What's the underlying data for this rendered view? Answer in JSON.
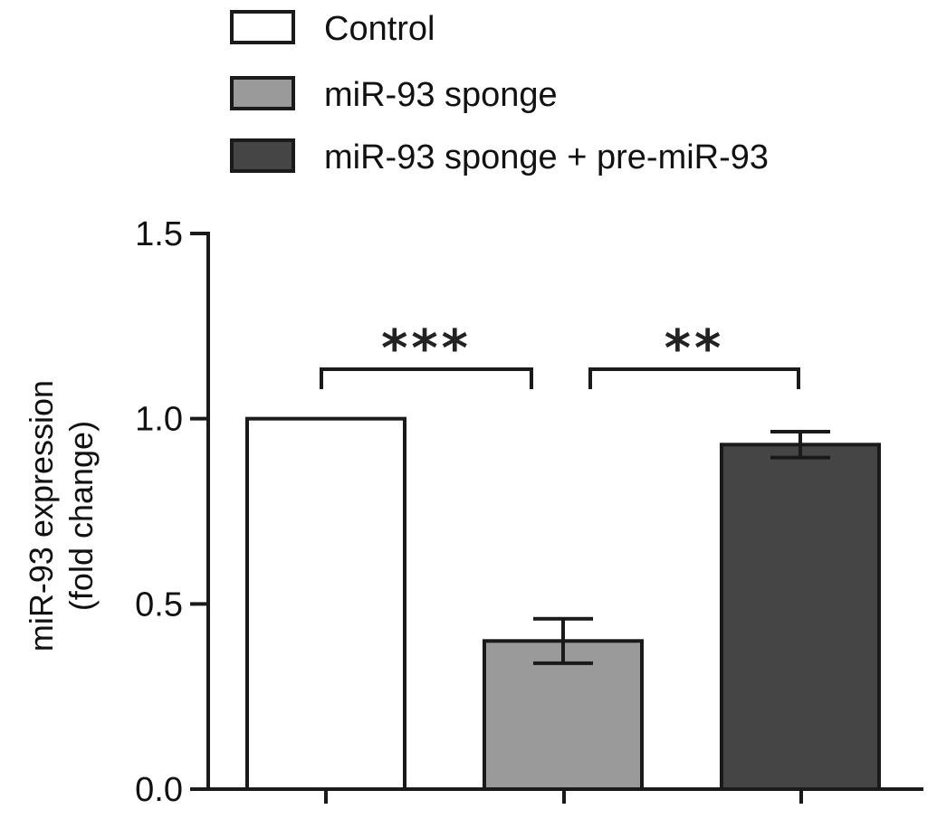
{
  "chart_data": {
    "type": "bar",
    "title": "",
    "xlabel": "",
    "ylabel": [
      "miR-93 expression",
      "(fold change)"
    ],
    "ylim": [
      0,
      1.5
    ],
    "yticks": [
      0.0,
      0.5,
      1.0,
      1.5
    ],
    "ytick_labels": [
      "0.0",
      "0.5",
      "1.0",
      "1.5"
    ],
    "grid": false,
    "legend_position": "top-left",
    "categories": [
      "Control",
      "miR-93 sponge",
      "miR-93 sponge + pre-miR-93"
    ],
    "series": [
      {
        "name": "Control",
        "value": 1.0,
        "error": null,
        "color": "#ffffff"
      },
      {
        "name": "miR-93 sponge",
        "value": 0.4,
        "error": 0.06,
        "color": "#9a9a9a"
      },
      {
        "name": "miR-93 sponge + pre-miR-93",
        "value": 0.93,
        "error": 0.035,
        "color": "#454545"
      }
    ],
    "significance": [
      {
        "from": 0,
        "to": 1,
        "label": "***"
      },
      {
        "from": 1,
        "to": 2,
        "label": "**"
      }
    ]
  }
}
